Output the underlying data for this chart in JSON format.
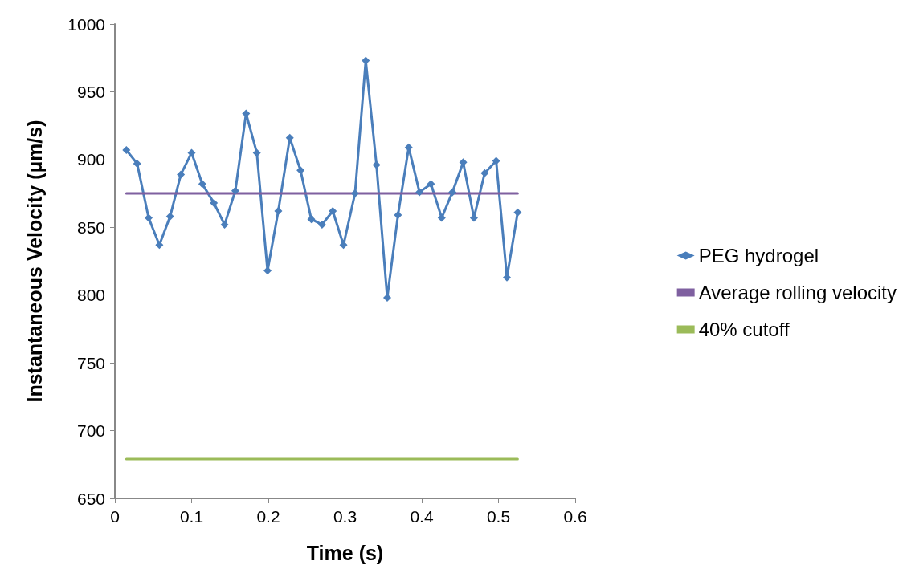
{
  "chart_data": {
    "type": "line",
    "xlabel": "Time (s)",
    "ylabel": "Instantaneous Velocity (µm/s)",
    "xlim": [
      0,
      0.6
    ],
    "xticks": [
      0,
      0.1,
      0.2,
      0.3,
      0.4,
      0.5,
      0.6
    ],
    "ylim": [
      650,
      1000
    ],
    "yticks": [
      650,
      700,
      750,
      800,
      850,
      900,
      950,
      1000
    ],
    "grid": false,
    "legend": "right",
    "line_style": "solid",
    "series": [
      {
        "name": "PEG hydrogel",
        "color": "#4a7ebb",
        "marker": "diamond",
        "x": [
          0.015,
          0.029,
          0.044,
          0.058,
          0.072,
          0.086,
          0.1,
          0.114,
          0.129,
          0.143,
          0.157,
          0.171,
          0.185,
          0.199,
          0.213,
          0.228,
          0.242,
          0.256,
          0.27,
          0.284,
          0.298,
          0.313,
          0.327,
          0.341,
          0.355,
          0.369,
          0.383,
          0.397,
          0.412,
          0.426,
          0.44,
          0.454,
          0.468,
          0.482,
          0.497,
          0.511,
          0.525
        ],
        "values": [
          907,
          897,
          857,
          837,
          858,
          889,
          905,
          882,
          868,
          852,
          877,
          934,
          905,
          818,
          862,
          916,
          892,
          856,
          852,
          862,
          837,
          875,
          973,
          896,
          798,
          859,
          909,
          876,
          882,
          857,
          876,
          898,
          857,
          890,
          899,
          813,
          861
        ]
      },
      {
        "name": "Average rolling velocity",
        "color": "#7f60a0",
        "marker": "none",
        "x": [
          0.015,
          0.525
        ],
        "values": [
          875,
          875
        ]
      },
      {
        "name": "40% cutoff",
        "color": "#9bbb59",
        "marker": "none",
        "x": [
          0.015,
          0.525
        ],
        "values": [
          679,
          679
        ]
      }
    ]
  }
}
